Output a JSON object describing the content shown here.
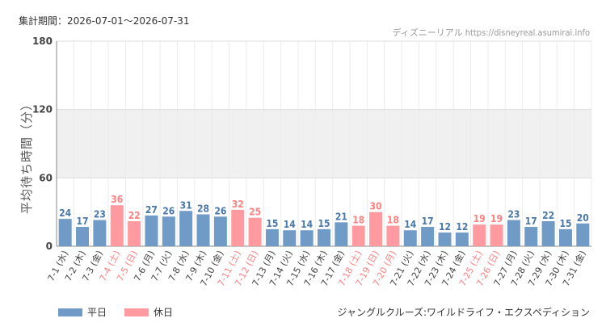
{
  "header": {
    "period_label": "集計期間：2026-07-01〜2026-07-31",
    "source": "ディズニーリアル https://disneyreal.asumirai.info"
  },
  "footer": {
    "attraction": "ジャングルクルーズ:ワイルドライフ・エクスペディション"
  },
  "chart_data": {
    "type": "bar",
    "ylabel": "平均待ち時間（分）",
    "ylim": [
      0,
      180
    ],
    "yticks": [
      0,
      60,
      120,
      180
    ],
    "grid": true,
    "shaded_band": [
      60,
      120
    ],
    "legend_position": "bottom-left",
    "colors": {
      "weekday": "#6f9bc6",
      "holiday": "#ff9ba0",
      "holiday_label": "#ff8080",
      "band": "#f0f0f0"
    },
    "legend": [
      {
        "key": "weekday",
        "label": "平日"
      },
      {
        "key": "holiday",
        "label": "休日"
      }
    ],
    "categories": [
      "7-1 (水)",
      "7-2 (木)",
      "7-3 (金)",
      "7-4 (土)",
      "7-5 (日)",
      "7-6 (月)",
      "7-7 (火)",
      "7-8 (水)",
      "7-9 (木)",
      "7-10 (金)",
      "7-11 (土)",
      "7-12 (日)",
      "7-13 (月)",
      "7-14 (火)",
      "7-15 (水)",
      "7-16 (木)",
      "7-17 (金)",
      "7-18 (土)",
      "7-19 (日)",
      "7-20 (月)",
      "7-21 (火)",
      "7-22 (水)",
      "7-23 (木)",
      "7-24 (金)",
      "7-25 (土)",
      "7-26 (日)",
      "7-27 (月)",
      "7-28 (火)",
      "7-29 (水)",
      "7-30 (木)",
      "7-31 (金)"
    ],
    "values": [
      24,
      17,
      23,
      36,
      22,
      27,
      26,
      31,
      28,
      26,
      32,
      25,
      15,
      14,
      14,
      15,
      21,
      18,
      30,
      18,
      14,
      17,
      12,
      12,
      19,
      19,
      23,
      17,
      22,
      15,
      20
    ],
    "holiday": [
      false,
      false,
      false,
      true,
      true,
      false,
      false,
      false,
      false,
      false,
      true,
      true,
      false,
      false,
      false,
      false,
      false,
      true,
      true,
      true,
      false,
      false,
      false,
      false,
      true,
      true,
      false,
      false,
      false,
      false,
      false
    ]
  }
}
